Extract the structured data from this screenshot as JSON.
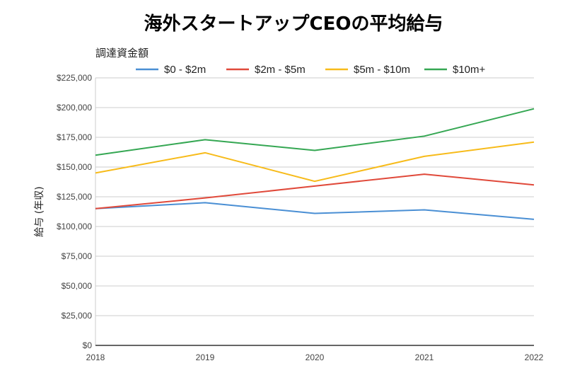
{
  "chart_data": {
    "type": "line",
    "title": "海外スタートアップCEOの平均給与",
    "xlabel": "",
    "ylabel": "給与 (年収)",
    "legend_title": "調達資金額",
    "legend_position": "top",
    "grid": true,
    "x": [
      "2018",
      "2019",
      "2020",
      "2021",
      "2022"
    ],
    "ylim": [
      0,
      225000
    ],
    "y_ticks": [
      0,
      25000,
      50000,
      75000,
      100000,
      125000,
      150000,
      175000,
      200000,
      225000
    ],
    "y_tick_labels": [
      "$0",
      "$25,000",
      "$50,000",
      "$75,000",
      "$100,000",
      "$125,000",
      "$150,000",
      "$175,000",
      "$200,000",
      "$225,000"
    ],
    "series": [
      {
        "name": "$0 - $2m",
        "color": "#4a8fd4",
        "values": [
          115000,
          120000,
          111000,
          114000,
          106000
        ]
      },
      {
        "name": "$2m - $5m",
        "color": "#e0493a",
        "values": [
          115000,
          124000,
          134000,
          144000,
          135000
        ]
      },
      {
        "name": "$5m - $10m",
        "color": "#f7bb1a",
        "values": [
          145000,
          162000,
          138000,
          159000,
          171000
        ]
      },
      {
        "name": "$10m+",
        "color": "#35a753",
        "values": [
          160000,
          173000,
          164000,
          176000,
          199000
        ]
      }
    ]
  }
}
